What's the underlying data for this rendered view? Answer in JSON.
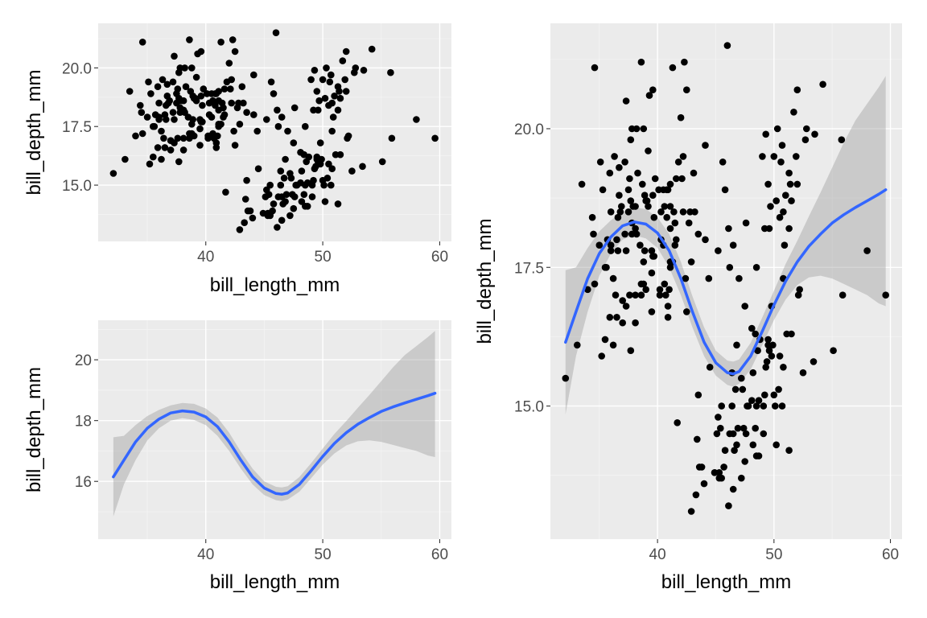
{
  "chart_data": [
    {
      "id": "top-left",
      "type": "scatter",
      "xlabel": "bill_length_mm",
      "ylabel": "bill_depth_mm",
      "xlim": [
        30.8,
        61.0
      ],
      "ylim": [
        12.6,
        21.9
      ],
      "x_ticks": [
        40,
        50,
        60
      ],
      "y_ticks": [
        15.0,
        17.5,
        20.0
      ],
      "x_tick_labels": [
        "40",
        "50",
        "60"
      ],
      "y_tick_labels": [
        "15.0",
        "17.5",
        "20.0"
      ],
      "grid": true,
      "points_source": "penguins"
    },
    {
      "id": "bottom-left",
      "type": "line",
      "xlabel": "bill_length_mm",
      "ylabel": "bill_depth_mm",
      "xlim": [
        30.8,
        61.0
      ],
      "ylim": [
        14.1,
        21.3
      ],
      "x_ticks": [
        40,
        50,
        60
      ],
      "y_ticks": [
        16,
        18,
        20
      ],
      "x_tick_labels": [
        "40",
        "50",
        "60"
      ],
      "y_tick_labels": [
        "16",
        "18",
        "20"
      ],
      "grid": true,
      "smooth_source": "loess",
      "ribbon_source": "loess"
    },
    {
      "id": "right",
      "type": "scatter",
      "xlabel": "bill_length_mm",
      "ylabel": "bill_depth_mm",
      "xlim": [
        30.8,
        61.0
      ],
      "ylim": [
        12.6,
        21.9
      ],
      "x_ticks": [
        40,
        50,
        60
      ],
      "y_ticks": [
        15.0,
        17.5,
        20.0
      ],
      "x_tick_labels": [
        "40",
        "50",
        "60"
      ],
      "y_tick_labels": [
        "15.0",
        "17.5",
        "20.0"
      ],
      "grid": true,
      "points_source": "penguins",
      "smooth_source": "loess",
      "ribbon_source": "loess"
    }
  ],
  "penguins": [
    [
      32.1,
      15.5
    ],
    [
      33.1,
      16.1
    ],
    [
      33.5,
      19.0
    ],
    [
      34.0,
      17.1
    ],
    [
      34.4,
      18.4
    ],
    [
      34.5,
      18.1
    ],
    [
      34.6,
      21.1
    ],
    [
      34.6,
      17.2
    ],
    [
      35.0,
      17.9
    ],
    [
      35.1,
      19.4
    ],
    [
      35.2,
      15.9
    ],
    [
      35.3,
      18.9
    ],
    [
      35.5,
      16.2
    ],
    [
      35.5,
      17.5
    ],
    [
      35.6,
      17.5
    ],
    [
      35.7,
      18.0
    ],
    [
      35.9,
      19.2
    ],
    [
      35.9,
      16.6
    ],
    [
      36.0,
      18.5
    ],
    [
      36.0,
      17.9
    ],
    [
      36.0,
      17.8
    ],
    [
      36.2,
      17.3
    ],
    [
      36.2,
      16.1
    ],
    [
      36.3,
      19.5
    ],
    [
      36.4,
      17.0
    ],
    [
      36.5,
      18.0
    ],
    [
      36.5,
      16.6
    ],
    [
      36.6,
      17.8
    ],
    [
      36.6,
      18.4
    ],
    [
      36.7,
      18.8
    ],
    [
      36.7,
      19.3
    ],
    [
      36.8,
      18.5
    ],
    [
      36.9,
      18.6
    ],
    [
      37.0,
      16.9
    ],
    [
      37.0,
      16.5
    ],
    [
      37.2,
      18.1
    ],
    [
      37.2,
      19.4
    ],
    [
      37.3,
      20.5
    ],
    [
      37.3,
      17.8
    ],
    [
      37.3,
      16.8
    ],
    [
      37.5,
      18.9
    ],
    [
      37.5,
      18.5
    ],
    [
      37.6,
      19.1
    ],
    [
      37.6,
      17.0
    ],
    [
      37.7,
      18.7
    ],
    [
      37.7,
      16.0
    ],
    [
      37.7,
      19.8
    ],
    [
      37.8,
      18.3
    ],
    [
      37.8,
      20.0
    ],
    [
      37.8,
      18.1
    ],
    [
      37.9,
      18.6
    ],
    [
      38.1,
      18.6
    ],
    [
      38.1,
      17.0
    ],
    [
      38.1,
      18.2
    ],
    [
      38.1,
      16.5
    ],
    [
      38.2,
      18.1
    ],
    [
      38.2,
      20.0
    ],
    [
      38.3,
      19.2
    ],
    [
      38.5,
      17.9
    ],
    [
      38.6,
      21.2
    ],
    [
      38.6,
      17.2
    ],
    [
      38.6,
      17.0
    ],
    [
      38.7,
      19.0
    ],
    [
      38.8,
      17.2
    ],
    [
      38.8,
      20.0
    ],
    [
      38.8,
      17.6
    ],
    [
      38.9,
      17.8
    ],
    [
      38.9,
      18.8
    ],
    [
      39.0,
      17.1
    ],
    [
      39.0,
      18.7
    ],
    [
      39.1,
      18.7
    ],
    [
      39.2,
      19.6
    ],
    [
      39.2,
      18.6
    ],
    [
      39.3,
      20.6
    ],
    [
      39.5,
      17.4
    ],
    [
      39.5,
      16.7
    ],
    [
      39.5,
      17.8
    ],
    [
      39.6,
      17.7
    ],
    [
      39.6,
      18.8
    ],
    [
      39.6,
      20.7
    ],
    [
      39.7,
      18.4
    ],
    [
      39.7,
      17.7
    ],
    [
      39.8,
      19.1
    ],
    [
      40.1,
      18.9
    ],
    [
      40.2,
      17.1
    ],
    [
      40.2,
      17.0
    ],
    [
      40.3,
      18.0
    ],
    [
      40.3,
      18.5
    ],
    [
      40.5,
      17.9
    ],
    [
      40.5,
      18.9
    ],
    [
      40.6,
      18.6
    ],
    [
      40.6,
      17.2
    ],
    [
      40.7,
      17.0
    ],
    [
      40.8,
      18.4
    ],
    [
      40.8,
      18.9
    ],
    [
      40.9,
      18.9
    ],
    [
      40.9,
      16.6
    ],
    [
      40.9,
      16.8
    ],
    [
      41.0,
      17.1
    ],
    [
      41.1,
      17.6
    ],
    [
      41.1,
      18.2
    ],
    [
      41.1,
      19.0
    ],
    [
      41.1,
      18.6
    ],
    [
      41.1,
      17.5
    ],
    [
      41.3,
      17.6
    ],
    [
      41.3,
      21.1
    ],
    [
      41.4,
      18.5
    ],
    [
      41.5,
      17.9
    ],
    [
      41.5,
      18.3
    ],
    [
      41.6,
      18.0
    ],
    [
      41.6,
      19.1
    ],
    [
      41.7,
      14.7
    ],
    [
      41.8,
      19.4
    ],
    [
      42.0,
      20.2
    ],
    [
      42.1,
      19.1
    ],
    [
      42.2,
      18.5
    ],
    [
      42.2,
      19.5
    ],
    [
      42.3,
      21.2
    ],
    [
      42.4,
      17.3
    ],
    [
      42.5,
      20.7
    ],
    [
      42.5,
      16.7
    ],
    [
      42.7,
      18.3
    ],
    [
      42.8,
      18.5
    ],
    [
      42.9,
      17.6
    ],
    [
      42.9,
      13.1
    ],
    [
      43.1,
      19.2
    ],
    [
      43.2,
      18.5
    ],
    [
      43.3,
      13.4
    ],
    [
      43.4,
      14.4
    ],
    [
      43.5,
      15.2
    ],
    [
      43.5,
      18.1
    ],
    [
      43.6,
      13.9
    ],
    [
      43.8,
      13.9
    ],
    [
      44.0,
      13.6
    ],
    [
      44.1,
      19.7
    ],
    [
      44.1,
      18.0
    ],
    [
      44.4,
      17.3
    ],
    [
      44.5,
      15.7
    ],
    [
      44.9,
      13.8
    ],
    [
      45.1,
      14.5
    ],
    [
      45.2,
      17.8
    ],
    [
      45.2,
      14.8
    ],
    [
      45.3,
      13.8
    ],
    [
      45.3,
      13.7
    ],
    [
      45.4,
      14.6
    ],
    [
      45.5,
      13.7
    ],
    [
      45.5,
      15.0
    ],
    [
      45.6,
      19.4
    ],
    [
      45.7,
      13.9
    ],
    [
      45.8,
      14.2
    ],
    [
      45.8,
      18.9
    ],
    [
      46.0,
      21.5
    ],
    [
      46.1,
      13.2
    ],
    [
      46.1,
      18.2
    ],
    [
      46.2,
      14.5
    ],
    [
      46.2,
      17.5
    ],
    [
      46.4,
      15.0
    ],
    [
      46.4,
      15.6
    ],
    [
      46.5,
      13.5
    ],
    [
      46.5,
      14.5
    ],
    [
      46.5,
      17.9
    ],
    [
      46.6,
      14.2
    ],
    [
      46.7,
      15.3
    ],
    [
      46.8,
      14.3
    ],
    [
      46.8,
      16.1
    ],
    [
      46.9,
      14.6
    ],
    [
      47.0,
      17.3
    ],
    [
      47.2,
      13.7
    ],
    [
      47.2,
      15.5
    ],
    [
      47.3,
      15.3
    ],
    [
      47.4,
      14.6
    ],
    [
      47.5,
      14.0
    ],
    [
      47.5,
      16.8
    ],
    [
      47.6,
      14.5
    ],
    [
      47.6,
      18.3
    ],
    [
      47.7,
      15.0
    ],
    [
      47.8,
      15.0
    ],
    [
      48.1,
      16.4
    ],
    [
      48.1,
      15.1
    ],
    [
      48.2,
      14.3
    ],
    [
      48.2,
      15.6
    ],
    [
      48.4,
      14.6
    ],
    [
      48.4,
      16.3
    ],
    [
      48.5,
      14.1
    ],
    [
      48.5,
      15.0
    ],
    [
      48.5,
      17.5
    ],
    [
      48.6,
      16.0
    ],
    [
      48.7,
      14.1
    ],
    [
      48.7,
      15.1
    ],
    [
      48.8,
      16.2
    ],
    [
      49.0,
      19.5
    ],
    [
      49.1,
      14.5
    ],
    [
      49.1,
      15.0
    ],
    [
      49.2,
      15.2
    ],
    [
      49.2,
      18.2
    ],
    [
      49.3,
      15.7
    ],
    [
      49.3,
      19.9
    ],
    [
      49.4,
      15.8
    ],
    [
      49.5,
      16.1
    ],
    [
      49.5,
      16.2
    ],
    [
      49.5,
      19.0
    ],
    [
      49.6,
      16.0
    ],
    [
      49.6,
      18.2
    ],
    [
      49.7,
      18.6
    ],
    [
      49.8,
      15.9
    ],
    [
      49.8,
      16.8
    ],
    [
      49.9,
      16.1
    ],
    [
      50.0,
      15.2
    ],
    [
      50.0,
      19.5
    ],
    [
      50.1,
      15.0
    ],
    [
      50.2,
      14.3
    ],
    [
      50.2,
      18.7
    ],
    [
      50.3,
      20.0
    ],
    [
      50.4,
      15.3
    ],
    [
      50.5,
      15.9
    ],
    [
      50.5,
      18.4
    ],
    [
      50.6,
      19.4
    ],
    [
      50.7,
      15.0
    ],
    [
      50.7,
      19.7
    ],
    [
      50.8,
      15.7
    ],
    [
      50.8,
      17.3
    ],
    [
      50.8,
      18.5
    ],
    [
      50.9,
      17.9
    ],
    [
      51.0,
      18.8
    ],
    [
      51.1,
      16.3
    ],
    [
      51.3,
      14.2
    ],
    [
      51.3,
      19.2
    ],
    [
      51.3,
      18.2
    ],
    [
      51.4,
      19.0
    ],
    [
      51.5,
      16.3
    ],
    [
      51.5,
      18.7
    ],
    [
      51.7,
      20.3
    ],
    [
      51.9,
      19.5
    ],
    [
      52.0,
      19.0
    ],
    [
      52.0,
      20.7
    ],
    [
      52.1,
      17.0
    ],
    [
      52.2,
      17.1
    ],
    [
      52.5,
      15.6
    ],
    [
      52.7,
      19.8
    ],
    [
      52.8,
      20.0
    ],
    [
      53.4,
      15.8
    ],
    [
      53.5,
      19.9
    ],
    [
      54.2,
      20.8
    ],
    [
      55.1,
      16.0
    ],
    [
      55.8,
      19.8
    ],
    [
      55.9,
      17.0
    ],
    [
      58.0,
      17.8
    ],
    [
      59.6,
      17.0
    ]
  ],
  "loess": [
    {
      "x": 32.1,
      "y": 16.15,
      "lo": 14.85,
      "hi": 17.45
    },
    {
      "x": 33.0,
      "y": 16.7,
      "lo": 15.9,
      "hi": 17.5
    },
    {
      "x": 34.0,
      "y": 17.3,
      "lo": 16.7,
      "hi": 17.85
    },
    {
      "x": 35.0,
      "y": 17.75,
      "lo": 17.35,
      "hi": 18.15
    },
    {
      "x": 36.0,
      "y": 18.05,
      "lo": 17.75,
      "hi": 18.35
    },
    {
      "x": 37.0,
      "y": 18.25,
      "lo": 18.0,
      "hi": 18.5
    },
    {
      "x": 38.0,
      "y": 18.32,
      "lo": 18.08,
      "hi": 18.58
    },
    {
      "x": 39.0,
      "y": 18.28,
      "lo": 18.02,
      "hi": 18.55
    },
    {
      "x": 40.0,
      "y": 18.12,
      "lo": 17.85,
      "hi": 18.4
    },
    {
      "x": 41.0,
      "y": 17.8,
      "lo": 17.5,
      "hi": 18.1
    },
    {
      "x": 42.0,
      "y": 17.3,
      "lo": 17.0,
      "hi": 17.6
    },
    {
      "x": 43.0,
      "y": 16.7,
      "lo": 16.42,
      "hi": 16.98
    },
    {
      "x": 44.0,
      "y": 16.15,
      "lo": 15.9,
      "hi": 16.42
    },
    {
      "x": 45.0,
      "y": 15.78,
      "lo": 15.55,
      "hi": 16.0
    },
    {
      "x": 46.0,
      "y": 15.6,
      "lo": 15.38,
      "hi": 15.82
    },
    {
      "x": 46.5,
      "y": 15.58,
      "lo": 15.35,
      "hi": 15.8
    },
    {
      "x": 47.0,
      "y": 15.62,
      "lo": 15.4,
      "hi": 15.84
    },
    {
      "x": 48.0,
      "y": 15.9,
      "lo": 15.66,
      "hi": 16.14
    },
    {
      "x": 49.0,
      "y": 16.35,
      "lo": 16.1,
      "hi": 16.6
    },
    {
      "x": 50.0,
      "y": 16.82,
      "lo": 16.55,
      "hi": 17.08
    },
    {
      "x": 51.0,
      "y": 17.25,
      "lo": 16.92,
      "hi": 17.56
    },
    {
      "x": 52.0,
      "y": 17.6,
      "lo": 17.18,
      "hi": 17.98
    },
    {
      "x": 53.0,
      "y": 17.88,
      "lo": 17.32,
      "hi": 18.42
    },
    {
      "x": 54.0,
      "y": 18.1,
      "lo": 17.35,
      "hi": 18.85
    },
    {
      "x": 55.0,
      "y": 18.3,
      "lo": 17.3,
      "hi": 19.3
    },
    {
      "x": 56.0,
      "y": 18.45,
      "lo": 17.2,
      "hi": 19.75
    },
    {
      "x": 57.0,
      "y": 18.58,
      "lo": 17.1,
      "hi": 20.15
    },
    {
      "x": 58.0,
      "y": 18.7,
      "lo": 17.0,
      "hi": 20.45
    },
    {
      "x": 59.0,
      "y": 18.82,
      "lo": 16.85,
      "hi": 20.75
    },
    {
      "x": 59.6,
      "y": 18.9,
      "lo": 16.8,
      "hi": 20.95
    }
  ]
}
